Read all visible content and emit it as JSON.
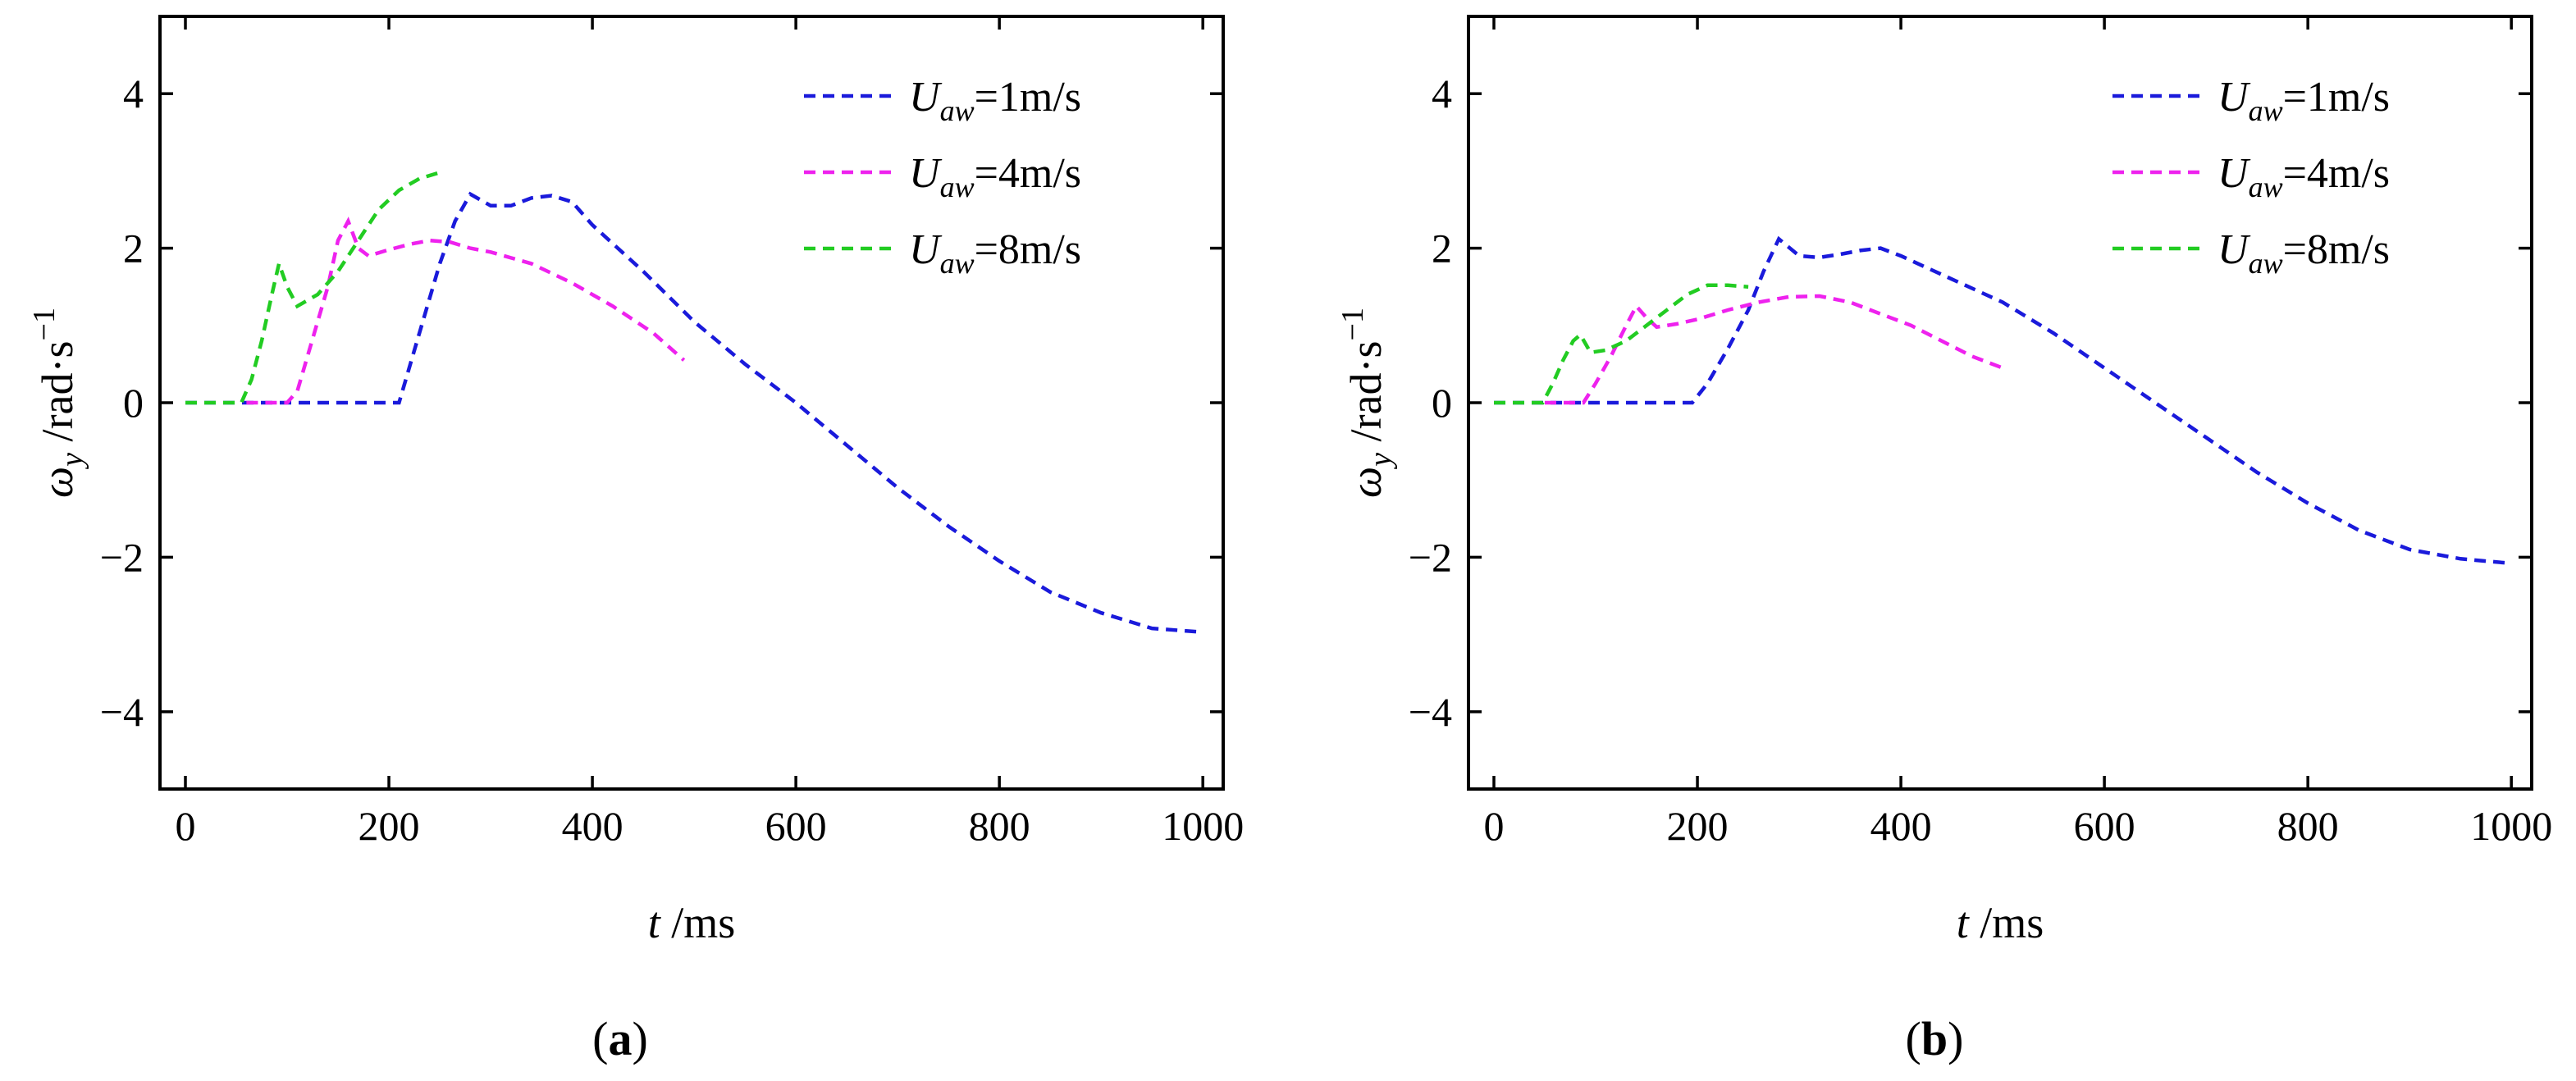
{
  "figure": {
    "panel_labels": [
      {
        "open": "(",
        "letter": "a",
        "close": ")"
      },
      {
        "open": "(",
        "letter": "b",
        "close": ")"
      }
    ]
  },
  "chart_data": [
    {
      "type": "line",
      "panel": "a",
      "xlabel": {
        "var": "t",
        "unit": " /ms"
      },
      "ylabel": {
        "var": "ω",
        "sub": "y",
        "unit": " /rad·s",
        "sup": "−1"
      },
      "xlim": [
        -25,
        1020
      ],
      "ylim": [
        -5,
        5
      ],
      "xticks": [
        0,
        200,
        400,
        600,
        800,
        1000
      ],
      "xtick_labels": [
        "0",
        "200",
        "400",
        "600",
        "800",
        "1000"
      ],
      "yticks": [
        -4,
        -2,
        0,
        2,
        4
      ],
      "ytick_labels": [
        "−4",
        "−2",
        "0",
        "2",
        "4"
      ],
      "legend_position": "top-right",
      "series": [
        {
          "name": "U_aw=1m/s",
          "label_var": "U",
          "label_sub": "aw",
          "label_rest": "=1m/s",
          "color": "#1a1adb",
          "x": [
            0,
            50,
            100,
            150,
            210,
            230,
            250,
            265,
            280,
            300,
            320,
            340,
            360,
            380,
            400,
            450,
            500,
            550,
            600,
            650,
            700,
            750,
            800,
            850,
            900,
            950,
            1000
          ],
          "y": [
            0,
            0,
            0,
            0,
            0,
            0.9,
            1.8,
            2.35,
            2.7,
            2.55,
            2.55,
            2.65,
            2.68,
            2.6,
            2.3,
            1.7,
            1.05,
            0.5,
            0.0,
            -0.55,
            -1.1,
            -1.6,
            -2.05,
            -2.45,
            -2.72,
            -2.92,
            -2.97
          ]
        },
        {
          "name": "U_aw=4m/s",
          "label_var": "U",
          "label_sub": "aw",
          "label_rest": "=4m/s",
          "color": "#ee22ee",
          "x": [
            60,
            80,
            100,
            110,
            120,
            140,
            150,
            160,
            170,
            180,
            200,
            220,
            240,
            260,
            280,
            300,
            340,
            380,
            420,
            460,
            490
          ],
          "y": [
            0,
            0,
            0,
            0.15,
            0.6,
            1.5,
            2.1,
            2.35,
            2.0,
            1.9,
            1.98,
            2.05,
            2.1,
            2.08,
            2.0,
            1.95,
            1.8,
            1.55,
            1.25,
            0.9,
            0.55
          ]
        },
        {
          "name": "U_aw=8m/s",
          "label_var": "U",
          "label_sub": "aw",
          "label_rest": "=8m/s",
          "color": "#22cc22",
          "x": [
            0,
            30,
            55,
            65,
            75,
            85,
            92,
            100,
            110,
            130,
            150,
            170,
            190,
            210,
            230,
            250
          ],
          "y": [
            0,
            0,
            0,
            0.3,
            0.8,
            1.4,
            1.8,
            1.5,
            1.25,
            1.4,
            1.7,
            2.1,
            2.5,
            2.75,
            2.9,
            2.98
          ]
        }
      ]
    },
    {
      "type": "line",
      "panel": "b",
      "xlabel": {
        "var": "t",
        "unit": " /ms"
      },
      "ylabel": {
        "var": "ω",
        "sub": "y",
        "unit": " /rad·s",
        "sup": "−1"
      },
      "xlim": [
        -25,
        1020
      ],
      "ylim": [
        -5,
        5
      ],
      "xticks": [
        0,
        200,
        400,
        600,
        800,
        1000
      ],
      "xtick_labels": [
        "0",
        "200",
        "400",
        "600",
        "800",
        "1000"
      ],
      "yticks": [
        -4,
        -2,
        0,
        2,
        4
      ],
      "ytick_labels": [
        "−4",
        "−2",
        "0",
        "2",
        "4"
      ],
      "legend_position": "top-right",
      "series": [
        {
          "name": "U_aw=1m/s",
          "label_var": "U",
          "label_sub": "aw",
          "label_rest": "=1m/s",
          "color": "#1a1adb",
          "x": [
            0,
            50,
            100,
            150,
            195,
            210,
            230,
            250,
            265,
            280,
            300,
            320,
            340,
            360,
            380,
            400,
            450,
            500,
            550,
            600,
            650,
            700,
            750,
            800,
            850,
            900,
            950,
            1000
          ],
          "y": [
            0,
            0,
            0,
            0,
            0,
            0.25,
            0.7,
            1.2,
            1.7,
            2.12,
            1.9,
            1.88,
            1.92,
            1.97,
            2.0,
            1.9,
            1.6,
            1.3,
            0.9,
            0.45,
            0.0,
            -0.45,
            -0.9,
            -1.3,
            -1.65,
            -1.9,
            -2.02,
            -2.08
          ]
        },
        {
          "name": "U_aw=4m/s",
          "label_var": "U",
          "label_sub": "aw",
          "label_rest": "=4m/s",
          "color": "#ee22ee",
          "x": [
            50,
            70,
            88,
            100,
            115,
            130,
            140,
            150,
            160,
            180,
            200,
            230,
            260,
            290,
            320,
            350,
            380,
            410,
            440,
            470,
            500
          ],
          "y": [
            0,
            0,
            0,
            0.25,
            0.6,
            1.0,
            1.25,
            1.1,
            0.98,
            1.02,
            1.08,
            1.2,
            1.3,
            1.37,
            1.38,
            1.3,
            1.15,
            1.0,
            0.8,
            0.6,
            0.45
          ]
        },
        {
          "name": "U_aw=8m/s",
          "label_var": "U",
          "label_sub": "aw",
          "label_rest": "=8m/s",
          "color": "#22cc22",
          "x": [
            0,
            30,
            48,
            58,
            68,
            78,
            85,
            95,
            110,
            130,
            150,
            170,
            190,
            210,
            230,
            250
          ],
          "y": [
            0,
            0,
            0,
            0.25,
            0.55,
            0.8,
            0.88,
            0.65,
            0.68,
            0.8,
            1.0,
            1.2,
            1.4,
            1.52,
            1.52,
            1.5
          ]
        }
      ]
    }
  ]
}
